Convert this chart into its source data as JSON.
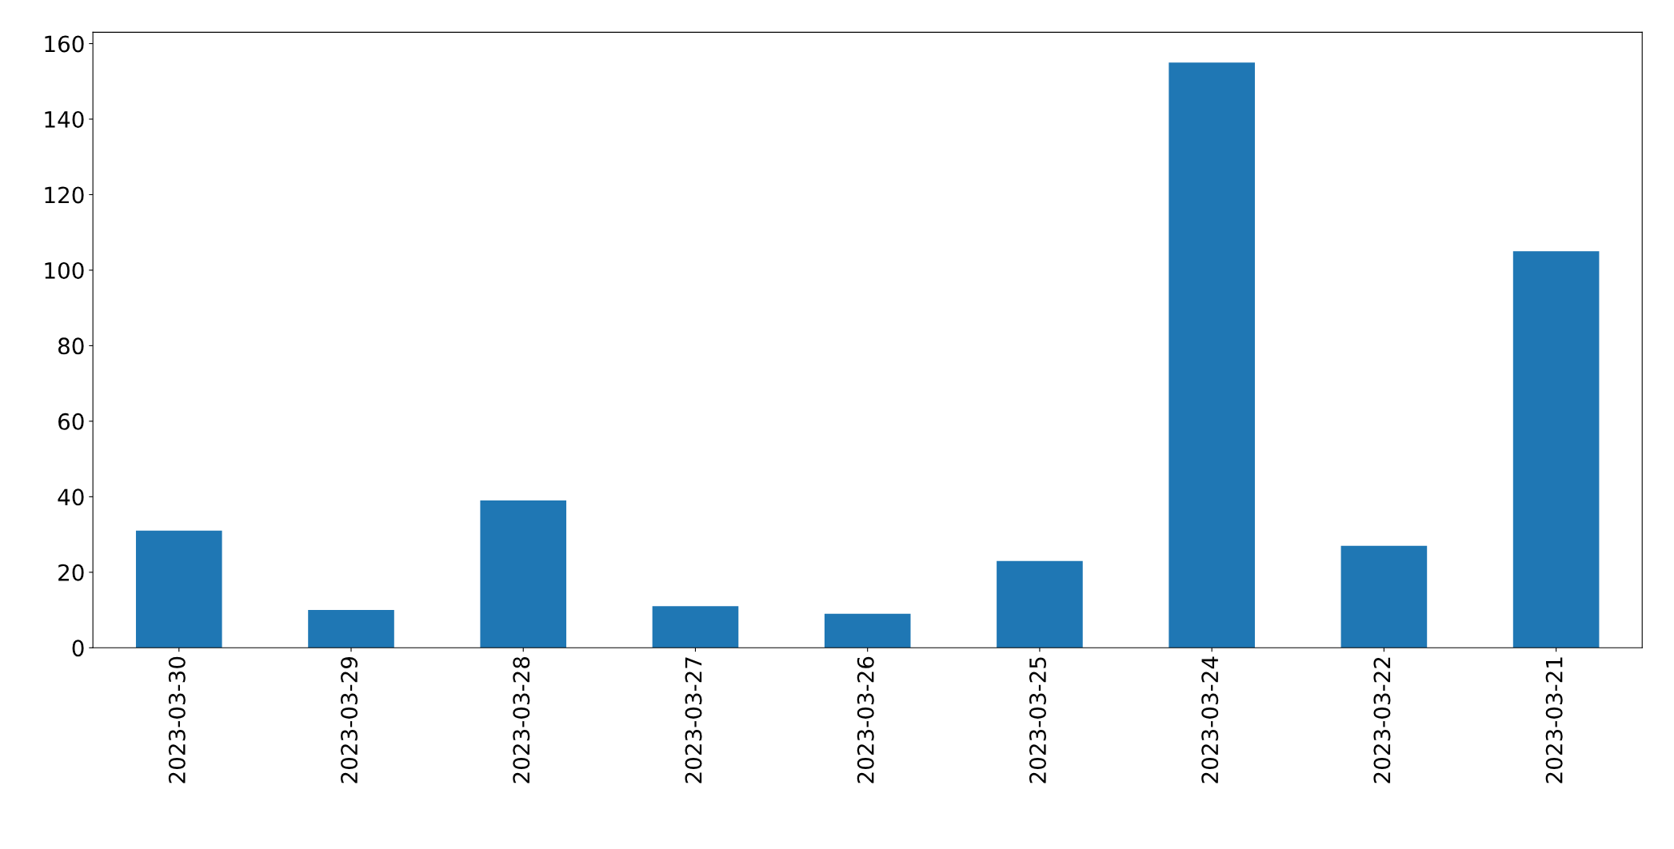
{
  "chart_data": {
    "type": "bar",
    "categories": [
      "2023-03-30",
      "2023-03-29",
      "2023-03-28",
      "2023-03-27",
      "2023-03-26",
      "2023-03-25",
      "2023-03-24",
      "2023-03-22",
      "2023-03-21"
    ],
    "values": [
      31,
      10,
      39,
      11,
      9,
      23,
      155,
      27,
      105
    ],
    "color": "#1f77b4",
    "ylim": [
      0,
      163
    ],
    "yticks": [
      0,
      20,
      40,
      60,
      80,
      100,
      120,
      140,
      160
    ],
    "grid": false,
    "legend": false
  }
}
